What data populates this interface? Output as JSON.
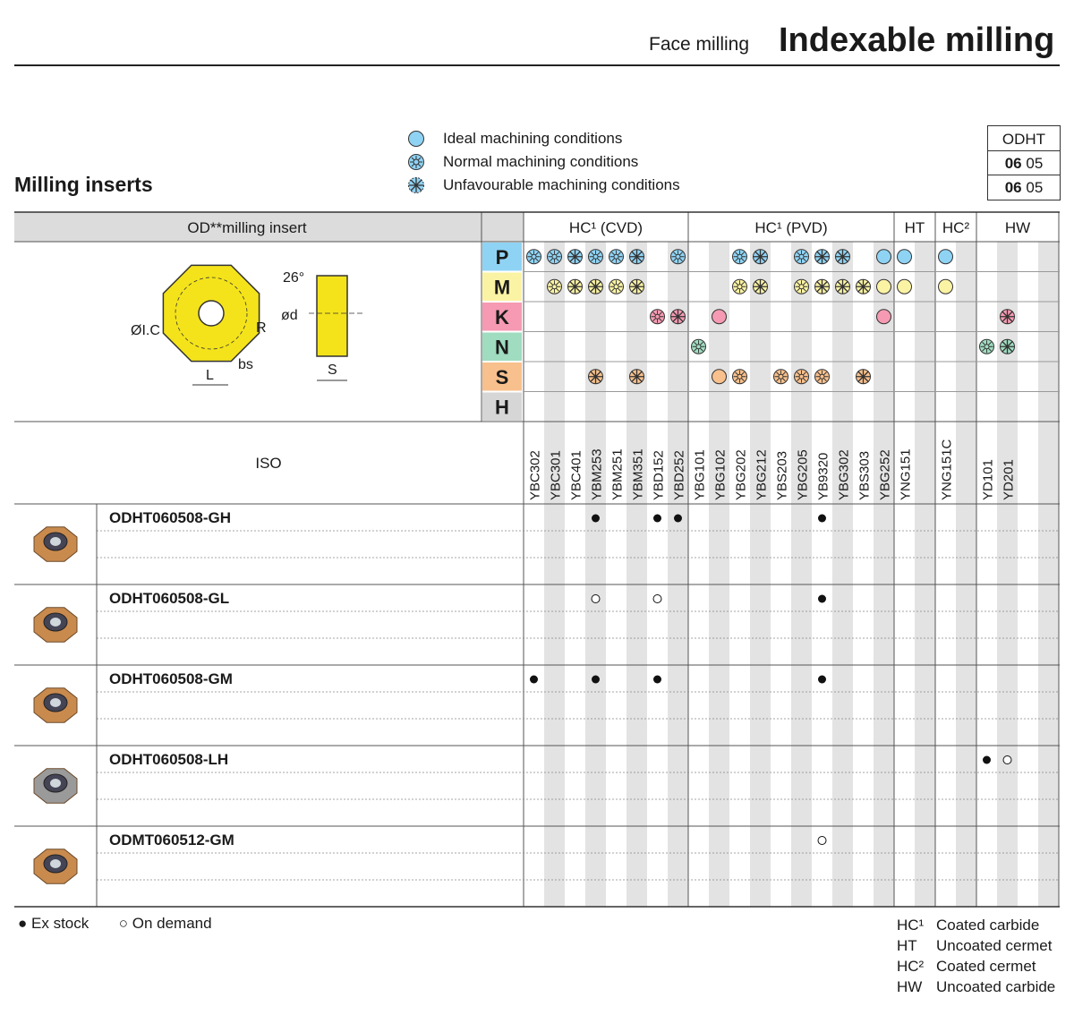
{
  "header": {
    "subtitle": "Face milling",
    "title": "Indexable milling"
  },
  "section_title": "Milling inserts",
  "legend": [
    {
      "icon": "ideal-circle-icon",
      "label": "Ideal machining conditions"
    },
    {
      "icon": "normal-flower-icon",
      "label": "Normal machining conditions"
    },
    {
      "icon": "unfavourable-star-icon",
      "label": "Unfavourable machining conditions"
    }
  ],
  "odht_box": {
    "title": "ODHT",
    "row1_bold": "06",
    "row1": "05",
    "row2_bold": "06",
    "row2": "05"
  },
  "table": {
    "insert_header": "OD**milling insert",
    "iso_label": "ISO",
    "groups": [
      {
        "label": "HC¹ (CVD)"
      },
      {
        "label": "HC¹ (PVD)"
      },
      {
        "label": "HT"
      },
      {
        "label": "HC²"
      },
      {
        "label": "HW"
      }
    ],
    "materials": [
      {
        "letter": "P",
        "color": "#8fd3f4"
      },
      {
        "letter": "M",
        "color": "#fbf3a4"
      },
      {
        "letter": "K",
        "color": "#f59ab2"
      },
      {
        "letter": "N",
        "color": "#9fdcc0"
      },
      {
        "letter": "S",
        "color": "#f8c08c"
      },
      {
        "letter": "H",
        "color": "#d6d6d6"
      }
    ],
    "grades": [
      "YBC302",
      "YBC301",
      "YBC401",
      "YBM253",
      "YBM251",
      "YBM351",
      "YBD152",
      "YBD252",
      "YBG101",
      "YBG102",
      "YBG202",
      "YBG212",
      "YBS203",
      "YBG205",
      "YB9320",
      "YBG302",
      "YBS303",
      "YBG252",
      "YNG151",
      "YNG151C",
      "YD101",
      "YD201"
    ],
    "grade_columns": [
      0,
      1,
      2,
      3,
      4,
      5,
      6,
      7,
      8,
      9,
      10,
      11,
      12,
      13,
      14,
      15,
      16,
      17,
      18,
      20,
      22,
      23
    ],
    "suitability": {
      "P": {
        "0": "normal",
        "1": "normal",
        "2": "unfav",
        "3": "normal",
        "4": "normal",
        "5": "unfav",
        "7": "normal",
        "10": "normal",
        "11": "unfav",
        "13": "normal",
        "14": "unfav",
        "15": "unfav",
        "17": "ideal",
        "18": "ideal",
        "20": "ideal"
      },
      "M": {
        "1": "normal",
        "2": "unfav",
        "3": "unfav",
        "4": "normal",
        "5": "unfav",
        "10": "normal",
        "11": "unfav",
        "13": "normal",
        "14": "unfav",
        "15": "unfav",
        "16": "unfav",
        "17": "ideal",
        "18": "ideal",
        "20": "ideal"
      },
      "K": {
        "6": "normal",
        "7": "unfav",
        "9": "ideal",
        "17": "ideal",
        "23": "unfav"
      },
      "N": {
        "8": "normal",
        "22": "normal",
        "23": "unfav"
      },
      "S": {
        "3": "unfav",
        "5": "unfav",
        "9": "ideal",
        "10": "normal",
        "12": "normal",
        "13": "normal",
        "14": "normal",
        "16": "unfav"
      },
      "H": {}
    },
    "diagram_labels": {
      "angle": "26°",
      "bore": "ød",
      "ic": "ØI.C",
      "radius": "R",
      "bs": "bs",
      "l": "L",
      "s": "S"
    },
    "products": [
      {
        "name": "ODHT060508-GH",
        "color": "#c98a4e",
        "marks": {
          "3": "ex",
          "6": "ex",
          "7": "ex",
          "14": "ex"
        }
      },
      {
        "name": "ODHT060508-GL",
        "color": "#c98a4e",
        "marks": {
          "3": "od",
          "6": "od",
          "14": "ex"
        }
      },
      {
        "name": "ODHT060508-GM",
        "color": "#c98a4e",
        "marks": {
          "0": "ex",
          "3": "ex",
          "6": "ex",
          "14": "ex"
        }
      },
      {
        "name": "ODHT060508-LH",
        "color": "#9a9a9a",
        "marks": {
          "22": "ex",
          "23": "od"
        }
      },
      {
        "name": "ODMT060512-GM",
        "color": "#c98a4e",
        "marks": {
          "14": "od"
        }
      }
    ]
  },
  "stock_legend": {
    "ex": "Ex stock",
    "od": "On demand",
    "ex_symbol": "●",
    "od_symbol": "○"
  },
  "abbreviations": [
    {
      "key": "HC¹",
      "value": "Coated carbide"
    },
    {
      "key": "HT",
      "value": "Uncoated cermet"
    },
    {
      "key": "HC²",
      "value": "Coated cermet"
    },
    {
      "key": "HW",
      "value": "Uncoated carbide"
    }
  ]
}
